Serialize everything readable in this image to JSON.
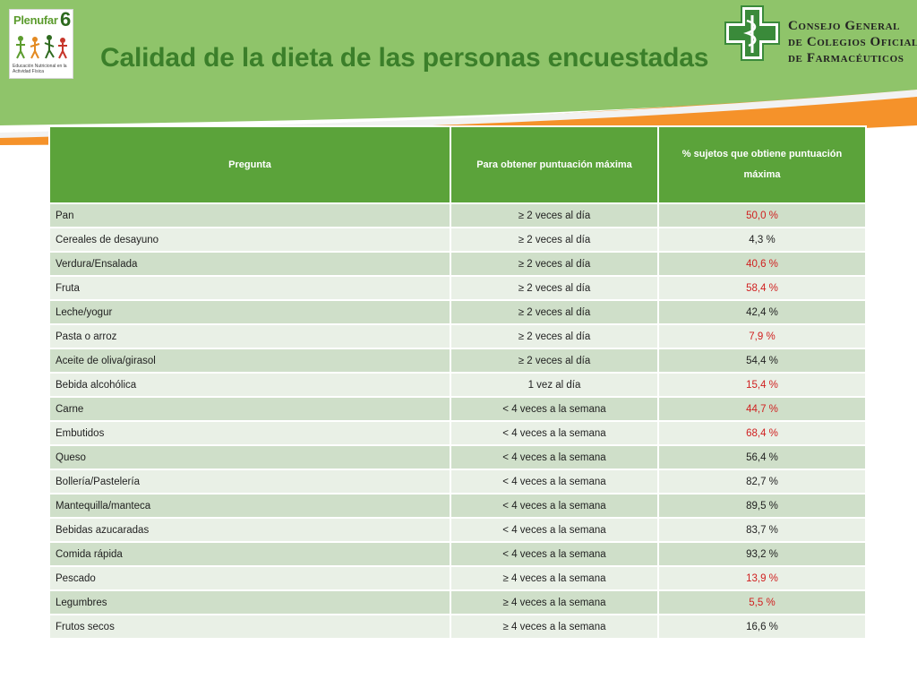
{
  "header": {
    "title": "Calidad de la dieta de las personas encuestadas",
    "logo_left": {
      "brand": "Plenufar",
      "number": "6",
      "tagline": "Educación Nutricional en la Actividad Física"
    },
    "logo_right": {
      "org_line1": "Consejo General",
      "org_line2": "de Colegios Oficiales",
      "org_line3": "de Farmacéuticos"
    }
  },
  "colors": {
    "header_green": "#5ba33a",
    "title_green": "#3b7f2a",
    "orange": "#f5922a",
    "light_green": "#8fc46a",
    "highlight_red": "#d02020"
  },
  "table": {
    "headers": [
      "Pregunta",
      "Para obtener puntuación máxima",
      "% sujetos que obtiene puntuación máxima"
    ],
    "rows": [
      {
        "item": "Pan",
        "criterion": "≥ 2 veces al día",
        "percent": "50,0 %",
        "highlight": true
      },
      {
        "item": "Cereales de desayuno",
        "criterion": "≥ 2 veces al día",
        "percent": "4,3 %",
        "highlight": false
      },
      {
        "item": "Verdura/Ensalada",
        "criterion": "≥ 2 veces al día",
        "percent": "40,6 %",
        "highlight": true
      },
      {
        "item": "Fruta",
        "criterion": "≥ 2 veces al día",
        "percent": "58,4 %",
        "highlight": true
      },
      {
        "item": "Leche/yogur",
        "criterion": "≥ 2 veces al día",
        "percent": "42,4 %",
        "highlight": false
      },
      {
        "item": "Pasta o arroz",
        "criterion": "≥ 2 veces al día",
        "percent": "7,9 %",
        "highlight": true
      },
      {
        "item": "Aceite de oliva/girasol",
        "criterion": "≥ 2 veces al día",
        "percent": "54,4 %",
        "highlight": false
      },
      {
        "item": "Bebida alcohólica",
        "criterion": "1 vez al día",
        "percent": "15,4 %",
        "highlight": true
      },
      {
        "item": "Carne",
        "criterion": "< 4 veces a la semana",
        "percent": "44,7 %",
        "highlight": true
      },
      {
        "item": "Embutidos",
        "criterion": "< 4 veces a la semana",
        "percent": "68,4 %",
        "highlight": true
      },
      {
        "item": "Queso",
        "criterion": "< 4 veces a la semana",
        "percent": "56,4 %",
        "highlight": false
      },
      {
        "item": "Bollería/Pastelería",
        "criterion": "< 4 veces a la semana",
        "percent": "82,7 %",
        "highlight": false
      },
      {
        "item": "Mantequilla/manteca",
        "criterion": "< 4 veces a la semana",
        "percent": "89,5 %",
        "highlight": false
      },
      {
        "item": "Bebidas azucaradas",
        "criterion": "< 4 veces a la semana",
        "percent": "83,7 %",
        "highlight": false
      },
      {
        "item": "Comida rápida",
        "criterion": "< 4 veces a la semana",
        "percent": "93,2 %",
        "highlight": false
      },
      {
        "item": "Pescado",
        "criterion": "≥ 4 veces a la semana",
        "percent": "13,9 %",
        "highlight": true
      },
      {
        "item": "Legumbres",
        "criterion": "≥ 4 veces a la semana",
        "percent": "5,5 %",
        "highlight": true
      },
      {
        "item": "Frutos secos",
        "criterion": "≥ 4 veces a la semana",
        "percent": "16,6 %",
        "highlight": false
      }
    ]
  }
}
